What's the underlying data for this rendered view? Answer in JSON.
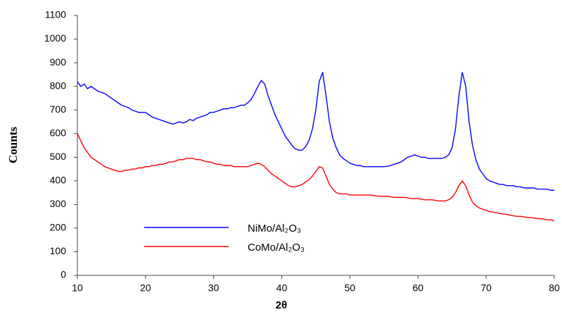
{
  "chart_data": {
    "type": "line",
    "x_label": "2θ",
    "y_label": "Counts",
    "x": [
      10,
      10.5,
      11,
      11.5,
      12,
      12.5,
      13,
      13.5,
      14,
      14.5,
      15,
      15.5,
      16,
      16.5,
      17,
      17.5,
      18,
      18.5,
      19,
      19.5,
      20,
      20.5,
      21,
      21.5,
      22,
      22.5,
      23,
      23.5,
      24,
      24.5,
      25,
      25.5,
      26,
      26.5,
      27,
      27.5,
      28,
      28.5,
      29,
      29.5,
      30,
      30.5,
      31,
      31.5,
      32,
      32.5,
      33,
      33.5,
      34,
      34.5,
      35,
      35.5,
      36,
      36.5,
      37,
      37.5,
      38,
      38.5,
      39,
      39.5,
      40,
      40.5,
      41,
      41.5,
      42,
      42.5,
      43,
      43.5,
      44,
      44.5,
      45,
      45.5,
      46,
      46.5,
      47,
      47.5,
      48,
      48.5,
      49,
      49.5,
      50,
      50.5,
      51,
      51.5,
      52,
      52.5,
      53,
      53.5,
      54,
      54.5,
      55,
      55.5,
      56,
      56.5,
      57,
      57.5,
      58,
      58.5,
      59,
      59.5,
      60,
      60.5,
      61,
      61.5,
      62,
      62.5,
      63,
      63.5,
      64,
      64.5,
      65,
      65.5,
      66,
      66.5,
      67,
      67.5,
      68,
      68.5,
      69,
      69.5,
      70,
      70.5,
      71,
      71.5,
      72,
      72.5,
      73,
      73.5,
      74,
      74.5,
      75,
      75.5,
      76,
      76.5,
      77,
      77.5,
      78,
      78.5,
      79,
      79.5,
      80
    ],
    "series": [
      {
        "name": "NiMo/Al₂O₃",
        "color": "#0000ff",
        "values": [
          820,
          800,
          810,
          790,
          800,
          790,
          780,
          775,
          770,
          760,
          750,
          740,
          730,
          720,
          715,
          710,
          700,
          695,
          690,
          690,
          690,
          680,
          670,
          665,
          660,
          655,
          650,
          645,
          640,
          645,
          650,
          645,
          650,
          660,
          655,
          665,
          670,
          675,
          680,
          690,
          690,
          695,
          700,
          705,
          705,
          710,
          710,
          715,
          720,
          720,
          730,
          745,
          770,
          800,
          825,
          810,
          760,
          720,
          680,
          650,
          620,
          590,
          570,
          550,
          535,
          530,
          530,
          545,
          570,
          620,
          700,
          820,
          860,
          760,
          650,
          580,
          540,
          510,
          495,
          485,
          475,
          470,
          465,
          465,
          460,
          460,
          460,
          460,
          460,
          460,
          460,
          462,
          465,
          470,
          475,
          480,
          490,
          500,
          505,
          510,
          505,
          500,
          500,
          495,
          495,
          495,
          495,
          495,
          500,
          510,
          540,
          620,
          760,
          860,
          800,
          650,
          550,
          490,
          450,
          430,
          410,
          400,
          395,
          390,
          385,
          385,
          380,
          380,
          380,
          375,
          375,
          370,
          370,
          370,
          370,
          365,
          365,
          365,
          365,
          360,
          360
        ]
      },
      {
        "name": "CoMo/Al₂O₃",
        "color": "#ff0000",
        "values": [
          600,
          570,
          540,
          520,
          500,
          490,
          480,
          470,
          460,
          455,
          450,
          445,
          440,
          440,
          445,
          445,
          450,
          450,
          455,
          455,
          460,
          460,
          465,
          465,
          470,
          470,
          475,
          480,
          480,
          485,
          490,
          490,
          495,
          495,
          495,
          490,
          490,
          485,
          480,
          480,
          475,
          470,
          470,
          465,
          465,
          465,
          460,
          460,
          460,
          460,
          460,
          465,
          470,
          475,
          470,
          460,
          445,
          430,
          420,
          410,
          400,
          390,
          380,
          375,
          375,
          380,
          385,
          395,
          405,
          420,
          440,
          460,
          455,
          420,
          385,
          365,
          350,
          345,
          345,
          345,
          340,
          340,
          340,
          340,
          340,
          340,
          340,
          338,
          336,
          335,
          335,
          335,
          333,
          330,
          330,
          330,
          330,
          328,
          325,
          325,
          325,
          322,
          320,
          320,
          320,
          318,
          315,
          315,
          315,
          320,
          330,
          350,
          380,
          400,
          380,
          340,
          310,
          295,
          285,
          280,
          275,
          270,
          268,
          265,
          262,
          260,
          258,
          255,
          252,
          250,
          250,
          248,
          245,
          245,
          243,
          240,
          240,
          238,
          235,
          235,
          232
        ]
      }
    ],
    "xlim": [
      10,
      80
    ],
    "xticks": [
      10,
      20,
      30,
      40,
      50,
      60,
      70,
      80
    ],
    "ylim": [
      0,
      1100
    ],
    "yticks": [
      0,
      100,
      200,
      300,
      400,
      500,
      600,
      700,
      800,
      900,
      1000,
      1100
    ]
  }
}
